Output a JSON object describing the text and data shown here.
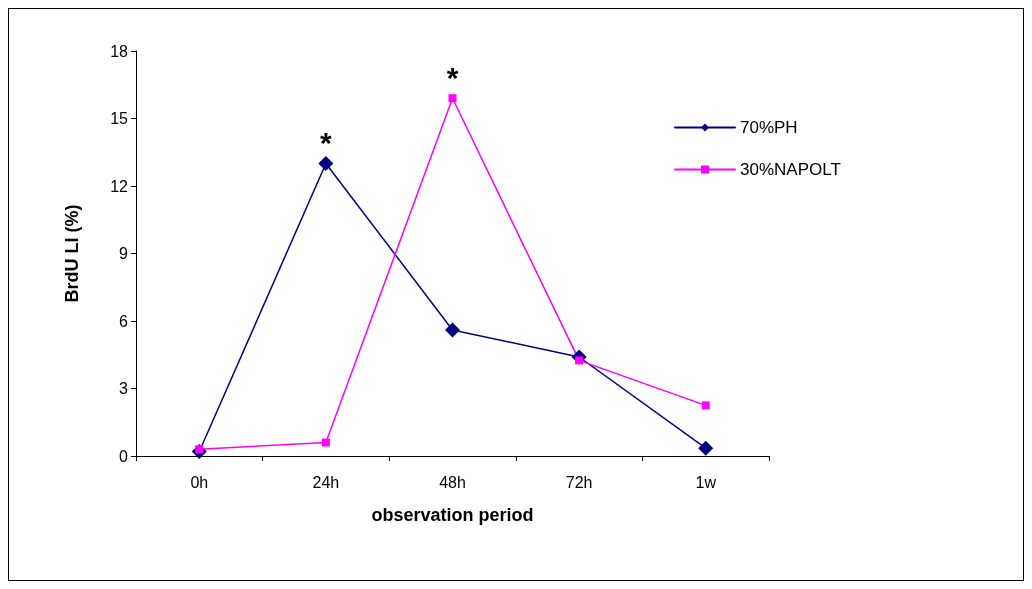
{
  "chart_data": {
    "type": "line",
    "xlabel": "observation period",
    "ylabel": "BrdU LI (%)",
    "categories": [
      "0h",
      "24h",
      "48h",
      "72h",
      "1w"
    ],
    "series": [
      {
        "name": "70%PH",
        "color": "#000080",
        "marker": "diamond",
        "values": [
          0.2,
          13.0,
          5.6,
          4.4,
          0.35
        ]
      },
      {
        "name": "30%NAPOLT",
        "color": "#ff00ff",
        "marker": "square",
        "values": [
          0.3,
          0.6,
          15.9,
          4.25,
          2.25
        ]
      }
    ],
    "ylim": [
      0,
      18
    ],
    "yticks": [
      0,
      3,
      6,
      9,
      12,
      15,
      18
    ],
    "grid": false,
    "legend": "right",
    "annotations": [
      {
        "text": "*",
        "x": "24h",
        "y": 13.0
      },
      {
        "text": "*",
        "x": "48h",
        "y": 15.9
      }
    ]
  }
}
